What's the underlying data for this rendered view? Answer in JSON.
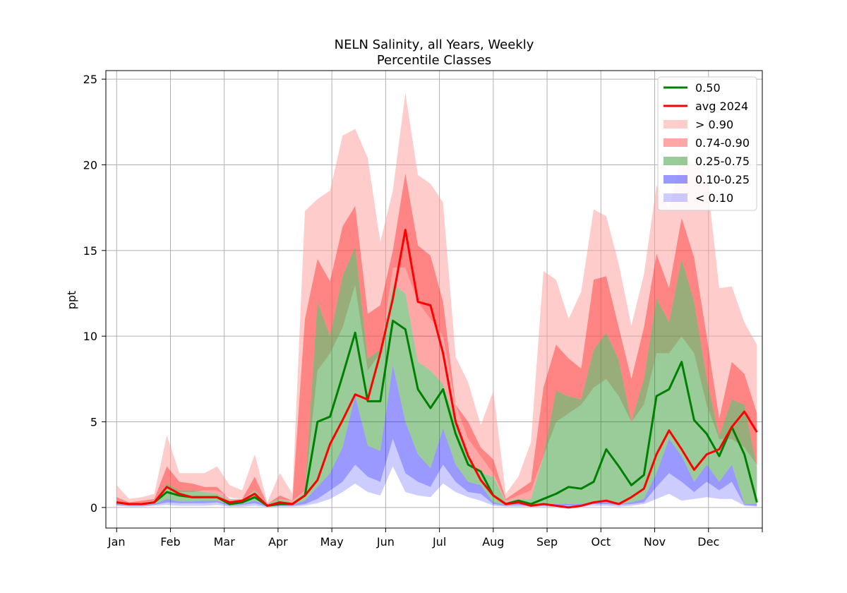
{
  "chart_data": {
    "type": "area",
    "title": "NELN Salinity, all Years, Weekly",
    "subtitle": "Percentile Classes",
    "xlabel": "",
    "ylabel": "ppt",
    "ylim": [
      -1.2,
      25.5
    ],
    "xlim": [
      -6,
      360
    ],
    "grid": true,
    "legend_position": "top-right",
    "x_ticks": [
      {
        "label": "Jan",
        "day": 0
      },
      {
        "label": "Feb",
        "day": 30
      },
      {
        "label": "Mar",
        "day": 60
      },
      {
        "label": "Apr",
        "day": 90
      },
      {
        "label": "May",
        "day": 120
      },
      {
        "label": "Jun",
        "day": 150
      },
      {
        "label": "Jul",
        "day": 180
      },
      {
        "label": "Aug",
        "day": 210
      },
      {
        "label": "Sep",
        "day": 240
      },
      {
        "label": "Oct",
        "day": 270
      },
      {
        "label": "Nov",
        "day": 300
      },
      {
        "label": "Dec",
        "day": 330
      },
      {
        "label": "",
        "day": 360
      }
    ],
    "y_ticks": [
      0,
      5,
      10,
      15,
      20,
      25
    ],
    "x_days": [
      0,
      7,
      14,
      21,
      28,
      35,
      42,
      49,
      56,
      63,
      70,
      77,
      84,
      91,
      98,
      105,
      112,
      119,
      126,
      133,
      140,
      147,
      154,
      161,
      168,
      175,
      182,
      189,
      196,
      203,
      210,
      217,
      224,
      231,
      238,
      245,
      252,
      259,
      266,
      273,
      280,
      287,
      294,
      301,
      308,
      315,
      322,
      329,
      336,
      343,
      350,
      357
    ],
    "series": [
      {
        "name": "0.50",
        "kind": "line",
        "color": "#008000",
        "values": [
          0.3,
          0.2,
          0.2,
          0.3,
          0.9,
          0.7,
          0.6,
          0.6,
          0.6,
          0.2,
          0.3,
          0.6,
          0.1,
          0.2,
          0.2,
          0.7,
          5.0,
          5.3,
          7.7,
          10.2,
          6.2,
          6.2,
          10.9,
          10.4,
          6.9,
          5.8,
          6.9,
          4.3,
          2.5,
          2.1,
          0.7,
          0.2,
          0.4,
          0.2,
          0.5,
          0.8,
          1.2,
          1.1,
          1.5,
          3.4,
          2.4,
          1.3,
          1.9,
          6.5,
          6.9,
          8.5,
          5.1,
          4.3,
          3.0,
          4.7,
          3.1,
          0.3
        ]
      },
      {
        "name": "avg 2024",
        "kind": "line",
        "color": "#ff0000",
        "values": [
          0.3,
          0.2,
          0.2,
          0.3,
          1.2,
          0.8,
          0.6,
          0.6,
          0.6,
          0.3,
          0.4,
          0.8,
          0.1,
          0.3,
          0.2,
          0.7,
          1.6,
          3.7,
          5.1,
          6.6,
          6.3,
          9.0,
          12.2,
          16.2,
          12.0,
          11.8,
          9.0,
          5.0,
          3.0,
          1.6,
          0.7,
          0.2,
          0.3,
          0.1,
          0.2,
          0.1,
          0.0,
          0.1,
          0.3,
          0.4,
          0.2,
          0.6,
          1.1,
          3.1,
          4.5,
          3.4,
          2.2,
          3.1,
          3.4,
          4.7,
          5.6,
          4.4
        ]
      },
      {
        "name": "> 0.90",
        "kind": "band",
        "color": "#ff9999",
        "opacity": 0.5,
        "upper": [
          1.3,
          0.5,
          0.6,
          0.8,
          4.2,
          2.0,
          2.0,
          2.0,
          2.4,
          1.3,
          1.0,
          3.1,
          0.3,
          2.0,
          0.8,
          17.3,
          18.0,
          18.5,
          21.7,
          22.1,
          20.4,
          15.5,
          18.5,
          24.2,
          19.4,
          18.9,
          17.8,
          8.8,
          7.3,
          4.8,
          6.8,
          0.8,
          1.8,
          3.8,
          13.8,
          13.3,
          11.0,
          12.6,
          17.4,
          17.0,
          14.2,
          10.6,
          13.6,
          18.8,
          17.4,
          20.6,
          20.0,
          19.4,
          12.8,
          12.9,
          10.8,
          9.5
        ],
        "lower": [
          0.3,
          0.2,
          0.3,
          0.4,
          1.2,
          0.9,
          0.9,
          1.0,
          1.0,
          0.6,
          0.5,
          1.0,
          0.2,
          0.5,
          0.4,
          1.0,
          8.0,
          9.0,
          10.5,
          13.0,
          8.0,
          9.0,
          14.0,
          14.0,
          12.0,
          11.0,
          10.0,
          6.0,
          4.0,
          3.0,
          2.0,
          0.4,
          0.7,
          1.0,
          3.0,
          5.0,
          5.5,
          6.0,
          7.0,
          7.5,
          6.5,
          5.0,
          6.0,
          9.0,
          9.0,
          10.0,
          9.0,
          6.0,
          4.0,
          4.0,
          3.5,
          2.5
        ]
      },
      {
        "name": "0.74-0.90",
        "kind": "band",
        "color": "#ff0000",
        "opacity": 0.35,
        "upper": [
          0.6,
          0.3,
          0.4,
          0.5,
          2.4,
          1.5,
          1.4,
          1.2,
          1.2,
          0.5,
          0.5,
          1.8,
          0.2,
          0.7,
          0.4,
          11.0,
          14.5,
          13.2,
          16.4,
          17.6,
          11.3,
          11.8,
          15.0,
          19.5,
          15.3,
          14.7,
          12.0,
          6.0,
          5.0,
          3.5,
          2.8,
          0.5,
          1.0,
          1.5,
          7.0,
          9.5,
          8.7,
          8.1,
          13.3,
          13.5,
          10.5,
          7.5,
          10.5,
          14.8,
          12.8,
          16.9,
          14.6,
          10.0,
          5.2,
          8.5,
          7.8,
          5.5
        ],
        "lower": [
          0.3,
          0.2,
          0.2,
          0.3,
          1.4,
          1.0,
          1.0,
          0.9,
          0.8,
          0.4,
          0.4,
          1.0,
          0.2,
          0.5,
          0.3,
          0.9,
          12.0,
          10.0,
          13.5,
          15.2,
          8.7,
          9.2,
          13.0,
          12.5,
          8.5,
          8.0,
          7.2,
          5.0,
          3.0,
          2.0,
          1.8,
          0.3,
          0.5,
          0.5,
          3.0,
          6.8,
          6.5,
          6.3,
          9.2,
          10.2,
          8.6,
          5.0,
          7.5,
          12.2,
          10.8,
          14.5,
          12.0,
          7.5,
          4.2,
          6.3,
          6.0,
          2.3
        ]
      },
      {
        "name": "0.25-0.75",
        "kind": "band",
        "color": "#008000",
        "opacity": 0.4,
        "upper": [
          0.3,
          0.2,
          0.2,
          0.3,
          1.4,
          1.0,
          1.0,
          0.9,
          0.8,
          0.4,
          0.4,
          1.0,
          0.2,
          0.5,
          0.3,
          0.9,
          12.0,
          10.0,
          13.5,
          15.2,
          8.7,
          9.2,
          13.0,
          12.5,
          8.5,
          8.0,
          7.2,
          5.0,
          3.0,
          2.0,
          1.8,
          0.3,
          0.5,
          0.5,
          3.0,
          6.8,
          6.5,
          6.3,
          9.2,
          10.2,
          8.6,
          5.0,
          7.5,
          12.2,
          10.8,
          14.5,
          12.0,
          7.5,
          4.2,
          6.3,
          6.0,
          2.3
        ],
        "lower": [
          0.2,
          0.15,
          0.15,
          0.2,
          0.5,
          0.35,
          0.35,
          0.4,
          0.4,
          0.15,
          0.2,
          0.4,
          0.1,
          0.15,
          0.15,
          0.4,
          1.2,
          2.0,
          3.5,
          6.5,
          3.6,
          3.3,
          8.3,
          5.0,
          3.1,
          2.3,
          4.6,
          2.5,
          1.5,
          1.3,
          0.3,
          0.15,
          0.2,
          0.2,
          0.2,
          0.2,
          0.2,
          0.2,
          0.3,
          0.3,
          0.2,
          0.3,
          0.5,
          2.0,
          4.0,
          3.0,
          1.5,
          2.5,
          1.5,
          2.5,
          0.2,
          0.2
        ]
      },
      {
        "name": "0.10-0.25",
        "kind": "band",
        "color": "#0000ff",
        "opacity": 0.4,
        "upper": [
          0.2,
          0.15,
          0.15,
          0.2,
          0.5,
          0.35,
          0.35,
          0.4,
          0.4,
          0.15,
          0.2,
          0.4,
          0.1,
          0.15,
          0.15,
          0.4,
          1.2,
          2.0,
          3.5,
          6.5,
          3.6,
          3.3,
          8.3,
          5.0,
          3.1,
          2.3,
          4.6,
          2.5,
          1.5,
          1.3,
          0.3,
          0.15,
          0.2,
          0.2,
          0.2,
          0.2,
          0.2,
          0.2,
          0.3,
          0.3,
          0.2,
          0.3,
          0.5,
          2.0,
          4.0,
          3.0,
          1.5,
          2.5,
          1.5,
          2.5,
          0.2,
          0.2
        ],
        "lower": [
          0.15,
          0.1,
          0.1,
          0.15,
          0.3,
          0.25,
          0.25,
          0.25,
          0.3,
          0.1,
          0.15,
          0.25,
          0.05,
          0.1,
          0.1,
          0.2,
          0.5,
          1.0,
          1.5,
          2.5,
          1.8,
          1.5,
          4.0,
          2.0,
          1.5,
          1.2,
          2.5,
          1.5,
          0.9,
          0.8,
          0.2,
          0.1,
          0.15,
          0.1,
          0.1,
          0.1,
          0.1,
          0.1,
          0.2,
          0.2,
          0.15,
          0.2,
          0.3,
          1.2,
          2.0,
          1.5,
          0.9,
          1.5,
          1.0,
          1.5,
          0.15,
          0.1
        ]
      },
      {
        "name": "< 0.10",
        "kind": "band",
        "color": "#0000ff",
        "opacity": 0.2,
        "upper": [
          0.15,
          0.1,
          0.1,
          0.15,
          0.3,
          0.25,
          0.25,
          0.25,
          0.3,
          0.1,
          0.15,
          0.25,
          0.05,
          0.1,
          0.1,
          0.2,
          0.5,
          1.0,
          1.5,
          2.5,
          1.8,
          1.5,
          4.0,
          2.0,
          1.5,
          1.2,
          2.5,
          1.5,
          0.9,
          0.8,
          0.2,
          0.1,
          0.15,
          0.1,
          0.1,
          0.1,
          0.1,
          0.1,
          0.2,
          0.2,
          0.15,
          0.2,
          0.3,
          1.2,
          2.0,
          1.5,
          0.9,
          1.5,
          1.0,
          1.5,
          0.15,
          0.1
        ],
        "lower": [
          0.1,
          0.05,
          0.05,
          0.1,
          0.15,
          0.1,
          0.1,
          0.1,
          0.15,
          0.05,
          0.05,
          0.1,
          0.02,
          0.05,
          0.05,
          0.1,
          0.25,
          0.5,
          0.9,
          1.4,
          0.9,
          0.7,
          2.4,
          0.9,
          0.7,
          0.6,
          1.4,
          0.9,
          0.6,
          0.4,
          0.1,
          0.05,
          0.05,
          0.05,
          0.05,
          0.05,
          0.05,
          0.05,
          0.1,
          0.1,
          0.05,
          0.1,
          0.2,
          0.5,
          0.8,
          0.4,
          0.5,
          0.6,
          0.5,
          0.5,
          0.1,
          0.05
        ]
      }
    ],
    "legend_order": [
      "0.50",
      "avg 2024",
      "> 0.90",
      "0.74-0.90",
      "0.25-0.75",
      "0.10-0.25",
      "< 0.10"
    ]
  }
}
